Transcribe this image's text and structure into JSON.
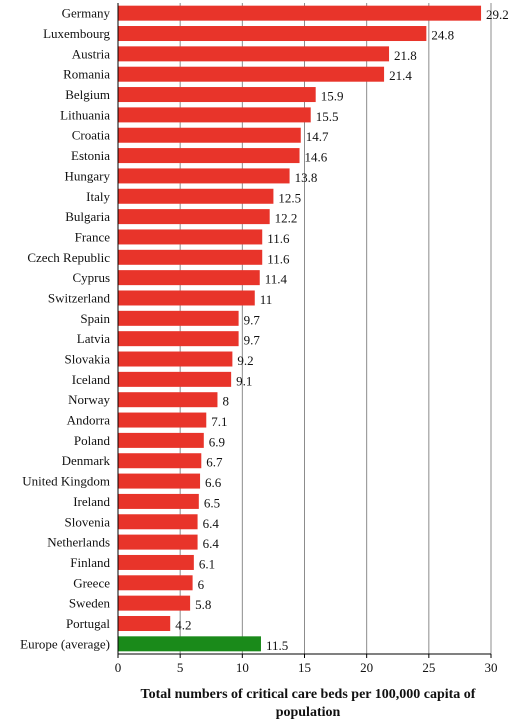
{
  "chart_data": {
    "type": "bar",
    "orientation": "horizontal",
    "categories": [
      "Germany",
      "Luxembourg",
      "Austria",
      "Romania",
      "Belgium",
      "Lithuania",
      "Croatia",
      "Estonia",
      "Hungary",
      "Italy",
      "Bulgaria",
      "France",
      "Czech Republic",
      "Cyprus",
      "Switzerland",
      "Spain",
      "Latvia",
      "Slovakia",
      "Iceland",
      "Norway",
      "Andorra",
      "Poland",
      "Denmark",
      "United Kingdom",
      "Ireland",
      "Slovenia",
      "Netherlands",
      "Finland",
      "Greece",
      "Sweden",
      "Portugal",
      "Europe (average)"
    ],
    "values": [
      29.2,
      24.8,
      21.8,
      21.4,
      15.9,
      15.5,
      14.7,
      14.6,
      13.8,
      12.5,
      12.2,
      11.6,
      11.6,
      11.4,
      11,
      9.7,
      9.7,
      9.2,
      9.1,
      8,
      7.1,
      6.9,
      6.7,
      6.6,
      6.5,
      6.4,
      6.4,
      6.1,
      6,
      5.8,
      4.2,
      11.5
    ],
    "value_labels": [
      "29.2",
      "24.8",
      "21.8",
      "21.4",
      "15.9",
      "15.5",
      "14.7",
      "14.6",
      "13.8",
      "12.5",
      "12.2",
      "11.6",
      "11.6",
      "11.4",
      "11",
      "9.7",
      "9.7",
      "9.2",
      "9.1",
      "8",
      "7.1",
      "6.9",
      "6.7",
      "6.6",
      "6.5",
      "6.4",
      "6.4",
      "6.1",
      "6",
      "5.8",
      "4.2",
      "11.5"
    ],
    "xlabel_lines": [
      "Total numbers of critical care beds per 100,000 capita of",
      "population"
    ],
    "ylabel": "",
    "title": "",
    "xlim": [
      0,
      30
    ],
    "xticks": [
      0,
      5,
      10,
      15,
      20,
      25,
      30
    ],
    "xtick_labels": [
      "0",
      "5",
      "10",
      "15",
      "20",
      "25",
      "30"
    ],
    "grid": "vertical",
    "colors": {
      "bar": "#e8342a",
      "average_bar": "#1a8a1a",
      "grid": "#8c8c8c",
      "axis": "#000000"
    }
  }
}
